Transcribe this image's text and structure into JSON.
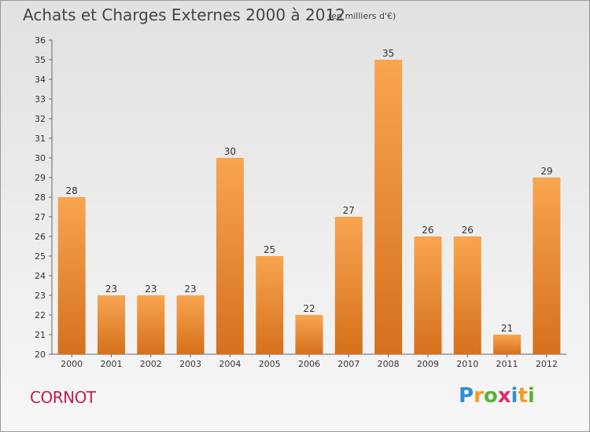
{
  "header": {
    "title": "Achats et Charges Externes 2000 à 2012",
    "unit": "(en milliers d'€)"
  },
  "footer": {
    "commune": "CORNOT"
  },
  "brand": {
    "letters": [
      "P",
      "r",
      "o",
      "x",
      "i",
      "t",
      "i"
    ],
    "colors": [
      "#2f8fd0",
      "#f39a1e",
      "#5bb236",
      "#e02b6e",
      "#2f8fd0",
      "#f39a1e",
      "#5bb236"
    ]
  },
  "colors": {
    "bar_top": "#f8a550",
    "bar_bottom": "#d6701c",
    "axis": "#666666",
    "text": "#333333"
  },
  "chart_data": {
    "type": "bar",
    "categories": [
      "2000",
      "2001",
      "2002",
      "2003",
      "2004",
      "2005",
      "2006",
      "2007",
      "2008",
      "2009",
      "2010",
      "2011",
      "2012"
    ],
    "values": [
      28,
      23,
      23,
      23,
      30,
      25,
      22,
      27,
      35,
      26,
      26,
      21,
      29
    ],
    "ylim": [
      20,
      36
    ],
    "yticks": [
      20,
      21,
      22,
      23,
      24,
      25,
      26,
      27,
      28,
      29,
      30,
      31,
      32,
      33,
      34,
      35,
      36
    ],
    "grid": false
  }
}
